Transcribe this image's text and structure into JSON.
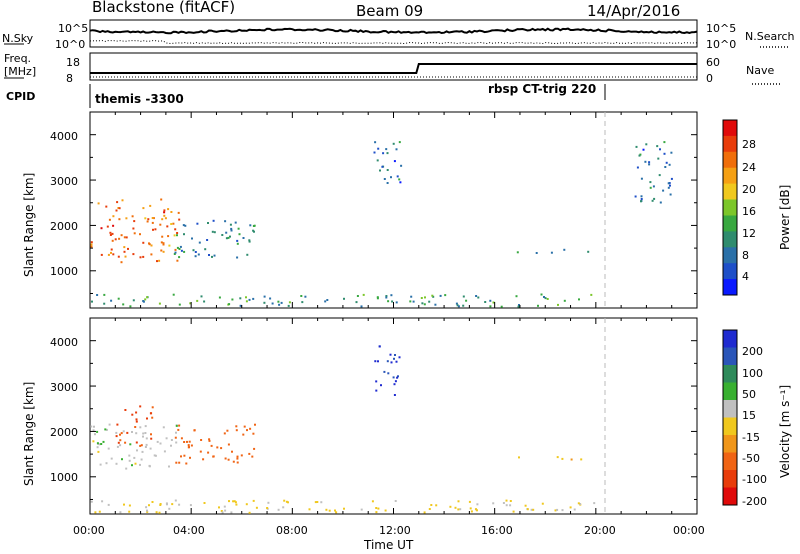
{
  "header": {
    "title": "Blackstone (fitACF)",
    "beam": "Beam 09",
    "date": "14/Apr/2016"
  },
  "top_panels": {
    "nsky_label": "N.Sky",
    "nsky_top": "10^5",
    "nsky_bottom": "10^0",
    "nsearch_label": "N.Search",
    "nsearch_top": "10^5",
    "nsearch_bottom": "10^0",
    "freq_label_1": "Freq.",
    "freq_label_2": "[MHz]",
    "freq_top": "18",
    "freq_bottom": "8",
    "nave_label": "Nave",
    "nave_top": "60",
    "nave_bottom": "0",
    "cpid_label": "CPID",
    "cpid_1": "themis -3300",
    "cpid_2": "rbsp CT-trig 220"
  },
  "power_panel": {
    "ylabel": "Slant Range [km]",
    "yticks": [
      "4000",
      "3000",
      "2000",
      "1000"
    ],
    "colorbar_label": "Power [dB]",
    "colorbar_ticks": [
      "28",
      "24",
      "20",
      "16",
      "12",
      "8",
      "4"
    ],
    "colors": [
      "#0a1aff",
      "#1e4fc8",
      "#2a70a8",
      "#2f8c6e",
      "#38a840",
      "#7cc62a",
      "#f0c81e",
      "#f5a014",
      "#f06e0a",
      "#e83c0a",
      "#e00a0a"
    ]
  },
  "velocity_panel": {
    "ylabel": "Slant Range [km]",
    "yticks": [
      "4000",
      "3000",
      "2000",
      "1000"
    ],
    "colorbar_label": "Velocity [m s⁻¹]",
    "colorbar_ticks": [
      "200",
      "100",
      "50",
      "15",
      "-15",
      "-50",
      "-100",
      "-200"
    ],
    "colors": [
      "#1f2bd0",
      "#2a55b8",
      "#2e8a5a",
      "#38b030",
      "#c0c0c0",
      "#f0c81e",
      "#f0961a",
      "#f06414",
      "#e83c0a",
      "#e00a0a"
    ]
  },
  "xaxis": {
    "label": "Time UT",
    "ticks": [
      "00:00",
      "04:00",
      "08:00",
      "12:00",
      "16:00",
      "20:00",
      "00:00"
    ]
  },
  "chart_data": [
    {
      "type": "heatmap",
      "title": "",
      "xlabel": "Time UT",
      "ylabel": "Slant Range [km]",
      "x_range_hours": [
        0,
        24
      ],
      "ylim": [
        180,
        4500
      ],
      "value": "Power [dB]",
      "colorbar_range": [
        0,
        30
      ],
      "regions": [
        {
          "t": [
            0.0,
            3.5
          ],
          "range": [
            1200,
            2600
          ],
          "value": 24
        },
        {
          "t": [
            3.3,
            6.5
          ],
          "range": [
            1300,
            2200
          ],
          "value": 8
        },
        {
          "t": [
            11.2,
            12.3
          ],
          "range": [
            2800,
            3900
          ],
          "value": 6
        },
        {
          "t": [
            0.0,
            20.0
          ],
          "range": [
            200,
            500
          ],
          "value": 10
        },
        {
          "t": [
            16.8,
            19.8
          ],
          "range": [
            1400,
            1500
          ],
          "value": 8
        },
        {
          "t": [
            21.5,
            23.0
          ],
          "range": [
            2500,
            3900
          ],
          "value": 6
        }
      ]
    },
    {
      "type": "heatmap",
      "title": "",
      "xlabel": "Time UT",
      "ylabel": "Slant Range [km]",
      "x_range_hours": [
        0,
        24
      ],
      "ylim": [
        180,
        4500
      ],
      "value": "Velocity [m s-1]",
      "regions": [
        {
          "t": [
            0.0,
            3.5
          ],
          "range": [
            1200,
            2200
          ],
          "value": 0
        },
        {
          "t": [
            1.0,
            2.5
          ],
          "range": [
            1700,
            2600
          ],
          "value": -150
        },
        {
          "t": [
            3.3,
            6.5
          ],
          "range": [
            1300,
            2200
          ],
          "value": -120
        },
        {
          "t": [
            11.2,
            12.3
          ],
          "range": [
            2800,
            3900
          ],
          "value": 200
        },
        {
          "t": [
            0.0,
            20.0
          ],
          "range": [
            200,
            500
          ],
          "value": -20
        },
        {
          "t": [
            16.8,
            19.8
          ],
          "range": [
            1400,
            1500
          ],
          "value": -50
        }
      ]
    },
    {
      "type": "line",
      "title": "",
      "series": [
        {
          "name": "N.Sky",
          "style": "solid"
        },
        {
          "name": "N.Search",
          "style": "dotted"
        }
      ]
    },
    {
      "type": "line",
      "title": "",
      "series": [
        {
          "name": "Freq.",
          "style": "solid",
          "values_mhz_hint": "~10-11"
        },
        {
          "name": "Nave",
          "style": "dotted",
          "x_step_hours": 13,
          "values_after_step": 60
        }
      ]
    }
  ]
}
